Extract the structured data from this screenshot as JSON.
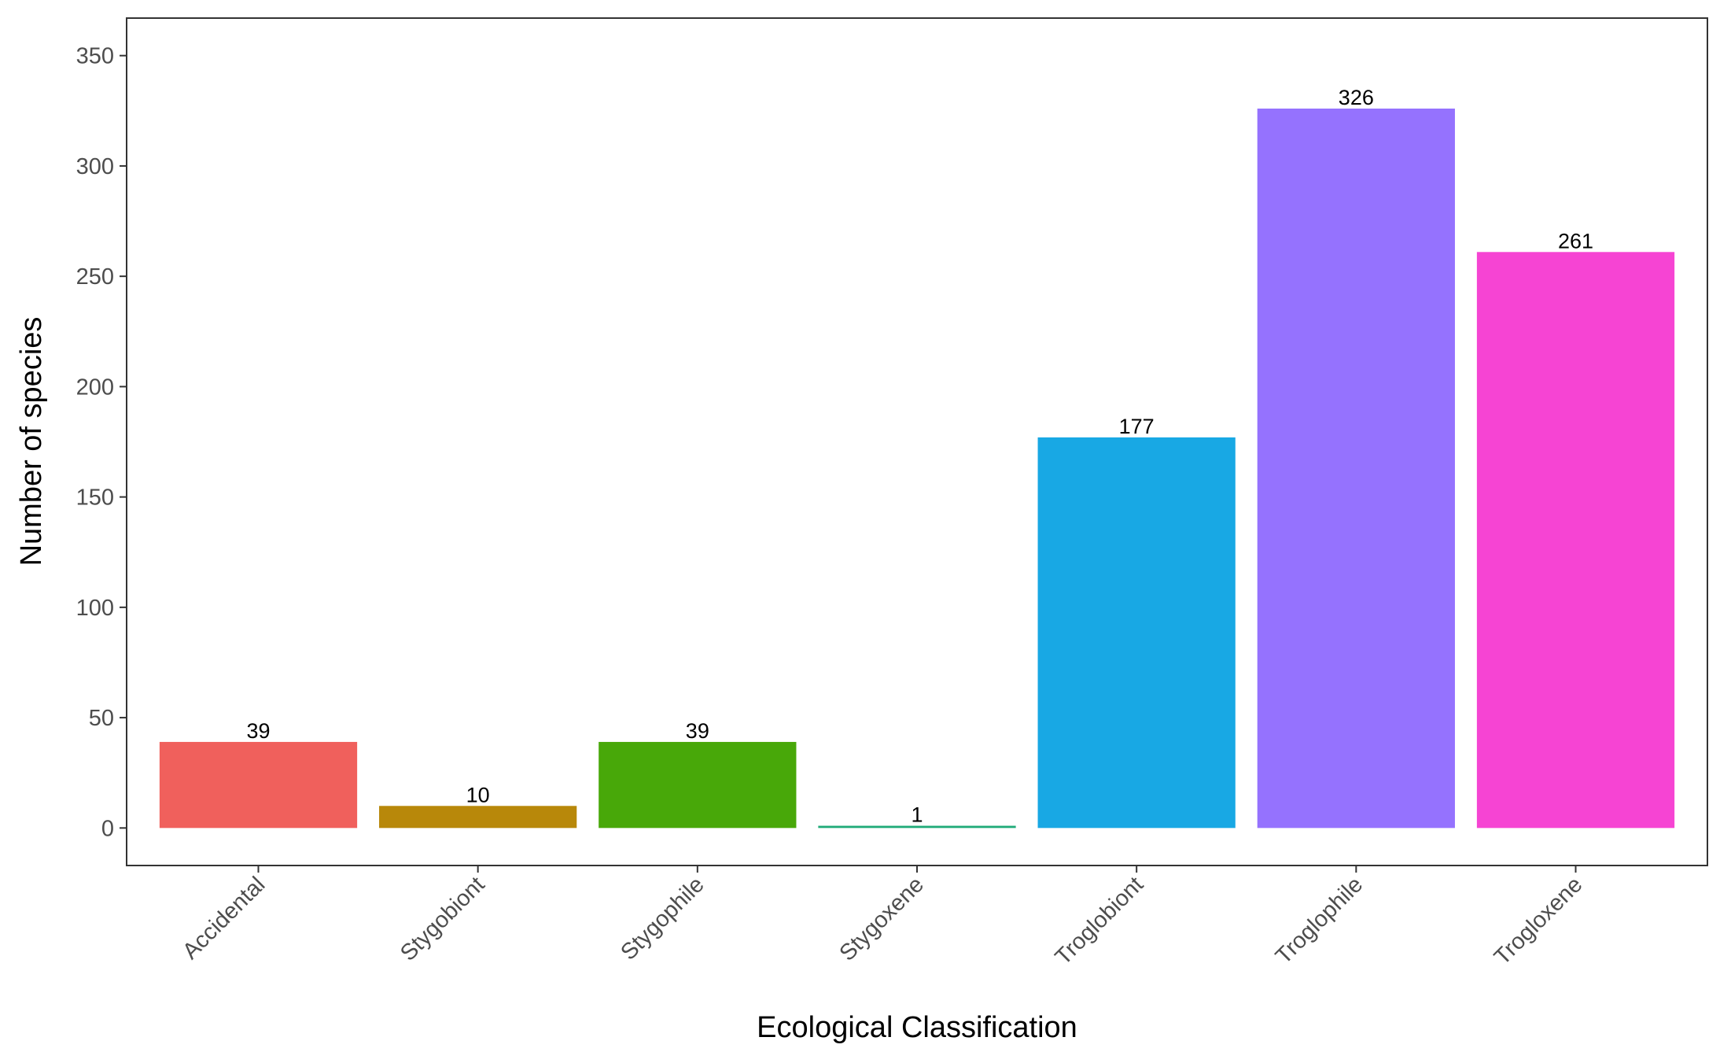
{
  "chart_data": {
    "type": "bar",
    "xlabel": "Ecological Classification",
    "ylabel": "Number of species",
    "ylim": [
      -17,
      367
    ],
    "yticks": [
      0,
      50,
      100,
      150,
      200,
      250,
      300,
      350
    ],
    "grid": false,
    "legend": "none",
    "categories": [
      "Accidental",
      "Stygobiont",
      "Stygophile",
      "Stygoxene",
      "Troglobiont",
      "Troglophile",
      "Trogloxene"
    ],
    "values": [
      39,
      10,
      39,
      1,
      177,
      326,
      261
    ],
    "data_labels": [
      "39",
      "10",
      "39",
      "1",
      "177",
      "326",
      "261"
    ],
    "colors": [
      "#F0605C",
      "#B8880A",
      "#48A809",
      "#1FAA78",
      "#18A8E4",
      "#9572FE",
      "#F644D3"
    ]
  }
}
